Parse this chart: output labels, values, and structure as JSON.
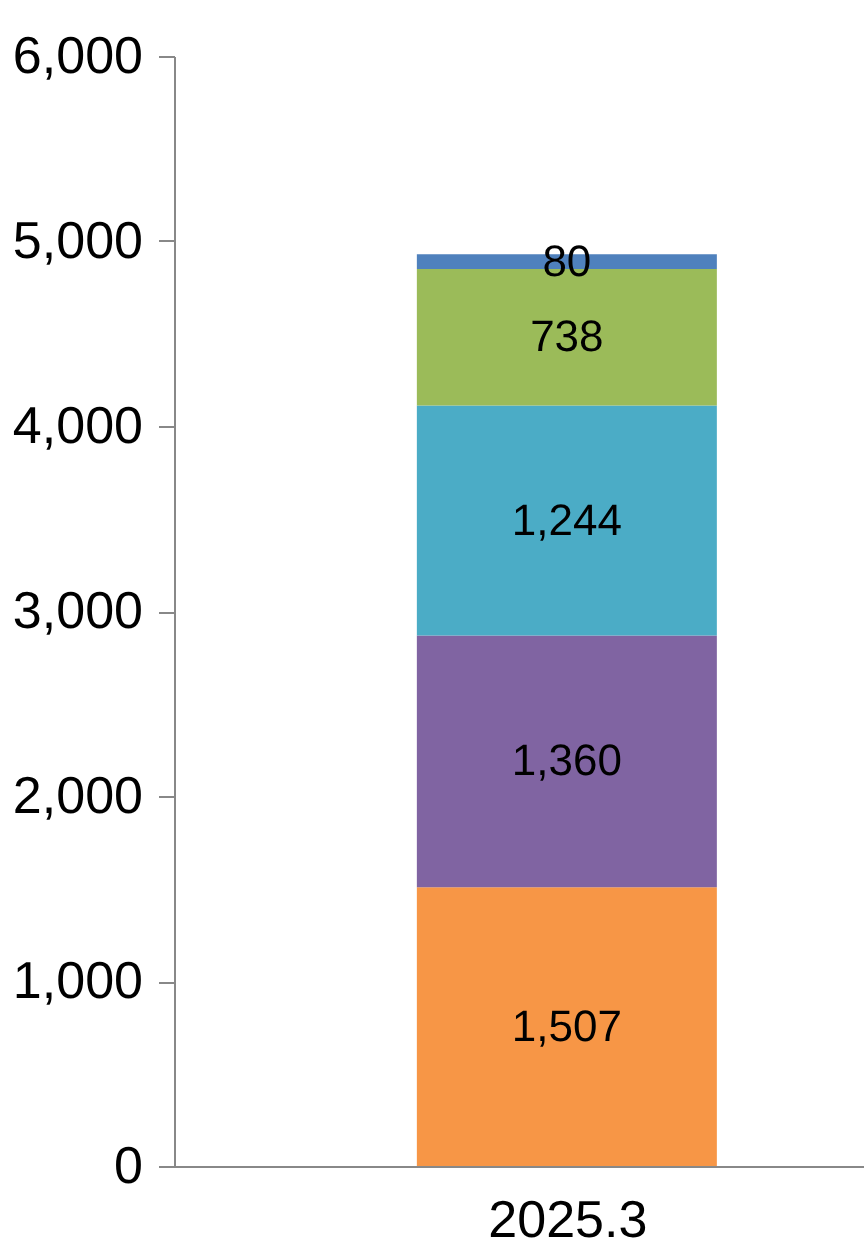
{
  "chart_data": {
    "type": "bar",
    "stacked": true,
    "grid": false,
    "categories": [
      "2025.3"
    ],
    "series": [
      {
        "color": "#f79646",
        "values": [
          1507
        ],
        "value_labels": [
          "1,507"
        ]
      },
      {
        "color": "#8064a2",
        "values": [
          1360
        ],
        "value_labels": [
          "1,360"
        ]
      },
      {
        "color": "#4bacc6",
        "values": [
          1244
        ],
        "value_labels": [
          "1,244"
        ]
      },
      {
        "color": "#9bbb59",
        "values": [
          738
        ],
        "value_labels": [
          "738"
        ]
      },
      {
        "color": "#4f81bd",
        "values": [
          80
        ],
        "value_labels": [
          "80"
        ]
      }
    ],
    "ylim": [
      0,
      6000
    ],
    "yticks": [
      0,
      {
        "value": 1000,
        "label": "1,000"
      },
      {
        "value": 2000,
        "label": "2,000"
      },
      {
        "value": 3000,
        "label": "3,000"
      },
      {
        "value": 4000,
        "label": "4,000"
      },
      {
        "value": 5000,
        "label": "5,000"
      },
      {
        "value": 6000,
        "label": "6,000"
      }
    ]
  }
}
